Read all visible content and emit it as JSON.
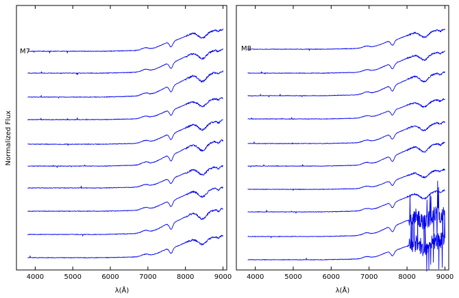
{
  "chart_data": [
    {
      "type": "line",
      "panel": "left",
      "spectral_type_label": "M7",
      "ylabel": "Normalized Flux",
      "xlabel": "λ(Å)",
      "xlim": [
        3500,
        9100
      ],
      "x_ticks": [
        4000,
        5000,
        6000,
        7000,
        8000,
        9000
      ],
      "x_range_of_spectra": [
        3800,
        9000
      ],
      "n_spectra": 10,
      "y_ticks": [],
      "grid": false,
      "legend": "none",
      "description_features_angstrom": [
        7050,
        7600,
        8200,
        8450
      ]
    },
    {
      "type": "line",
      "panel": "right",
      "spectral_type_label": "M8",
      "xlabel": "λ(Å)",
      "xlim": [
        3500,
        9100
      ],
      "x_ticks": [
        4000,
        5000,
        6000,
        7000,
        8000,
        9000
      ],
      "x_range_of_spectra": [
        3800,
        9000
      ],
      "n_spectra": 10,
      "y_ticks": [],
      "grid": false,
      "legend": "none",
      "description_features_angstrom": [
        7050,
        7600,
        8200,
        8450
      ]
    }
  ],
  "colors": {
    "line": "#0000ee",
    "axes": "#000000",
    "background": "#ffffff"
  }
}
